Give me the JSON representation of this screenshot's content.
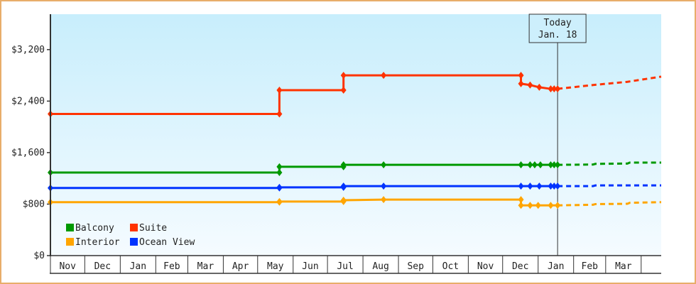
{
  "chart_data": {
    "type": "line",
    "title": "",
    "xlabel": "",
    "ylabel": "",
    "ylim": [
      0,
      3750
    ],
    "y_ticks": [
      {
        "value": 0,
        "label": "$0"
      },
      {
        "value": 800,
        "label": "$800"
      },
      {
        "value": 1600,
        "label": "$1,600"
      },
      {
        "value": 2400,
        "label": "$2,400"
      },
      {
        "value": 3200,
        "label": "$3,200"
      }
    ],
    "x_ticks": [
      "Nov",
      "Dec",
      "Jan",
      "Feb",
      "Mar",
      "Apr",
      "May",
      "Jun",
      "Jul",
      "Aug",
      "Sep",
      "Oct",
      "Nov",
      "Dec",
      "Jan",
      "Feb",
      "Mar"
    ],
    "grid": false,
    "legend_position": "bottom-left",
    "today_marker": {
      "line1": "Today",
      "line2": "Jan. 18",
      "month_index": 14,
      "day": 18
    },
    "series": [
      {
        "name": "Balcony",
        "color": "#009900",
        "points": [
          [
            0,
            1,
            1290
          ],
          [
            6,
            20,
            1290
          ],
          [
            6,
            20,
            1380
          ],
          [
            8,
            15,
            1380
          ],
          [
            8,
            15,
            1410
          ],
          [
            9,
            19,
            1410
          ],
          [
            13,
            17,
            1410
          ],
          [
            13,
            25,
            1410
          ],
          [
            13,
            29,
            1410
          ],
          [
            14,
            3,
            1410
          ],
          [
            14,
            12,
            1410
          ],
          [
            14,
            15,
            1410
          ],
          [
            14,
            18,
            1410
          ]
        ],
        "forecast": [
          [
            14,
            18,
            1410
          ],
          [
            15,
            18,
            1415
          ],
          [
            15,
            20,
            1425
          ],
          [
            16,
            20,
            1430
          ],
          [
            16,
            22,
            1445
          ],
          [
            17,
            25,
            1445
          ]
        ]
      },
      {
        "name": "Suite",
        "color": "#ff3300",
        "points": [
          [
            0,
            1,
            2200
          ],
          [
            6,
            20,
            2200
          ],
          [
            6,
            20,
            2570
          ],
          [
            8,
            15,
            2570
          ],
          [
            8,
            15,
            2800
          ],
          [
            9,
            19,
            2800
          ],
          [
            13,
            17,
            2800
          ],
          [
            13,
            17,
            2670
          ],
          [
            13,
            25,
            2650
          ],
          [
            14,
            2,
            2615
          ],
          [
            14,
            12,
            2590
          ],
          [
            14,
            15,
            2590
          ],
          [
            14,
            18,
            2590
          ]
        ],
        "forecast": [
          [
            14,
            18,
            2590
          ],
          [
            15,
            18,
            2650
          ],
          [
            16,
            20,
            2700
          ],
          [
            17,
            25,
            2780
          ]
        ]
      },
      {
        "name": "Interior",
        "color": "#ffa500",
        "points": [
          [
            0,
            1,
            830
          ],
          [
            6,
            20,
            830
          ],
          [
            6,
            20,
            840
          ],
          [
            8,
            15,
            840
          ],
          [
            8,
            15,
            860
          ],
          [
            9,
            19,
            870
          ],
          [
            13,
            17,
            870
          ],
          [
            13,
            17,
            780
          ],
          [
            13,
            25,
            780
          ],
          [
            14,
            1,
            780
          ],
          [
            14,
            12,
            780
          ],
          [
            14,
            18,
            780
          ]
        ],
        "forecast": [
          [
            14,
            18,
            780
          ],
          [
            15,
            18,
            790
          ],
          [
            15,
            20,
            800
          ],
          [
            16,
            20,
            805
          ],
          [
            16,
            22,
            820
          ],
          [
            17,
            25,
            830
          ]
        ]
      },
      {
        "name": "Ocean View",
        "color": "#0033ff",
        "points": [
          [
            0,
            1,
            1050
          ],
          [
            6,
            20,
            1050
          ],
          [
            6,
            20,
            1060
          ],
          [
            8,
            15,
            1060
          ],
          [
            8,
            15,
            1080
          ],
          [
            9,
            19,
            1080
          ],
          [
            13,
            17,
            1080
          ],
          [
            13,
            25,
            1080
          ],
          [
            14,
            2,
            1080
          ],
          [
            14,
            12,
            1080
          ],
          [
            14,
            15,
            1080
          ],
          [
            14,
            18,
            1080
          ]
        ],
        "forecast": [
          [
            14,
            18,
            1080
          ],
          [
            15,
            18,
            1080
          ],
          [
            15,
            20,
            1090
          ],
          [
            17,
            25,
            1090
          ]
        ]
      }
    ]
  }
}
